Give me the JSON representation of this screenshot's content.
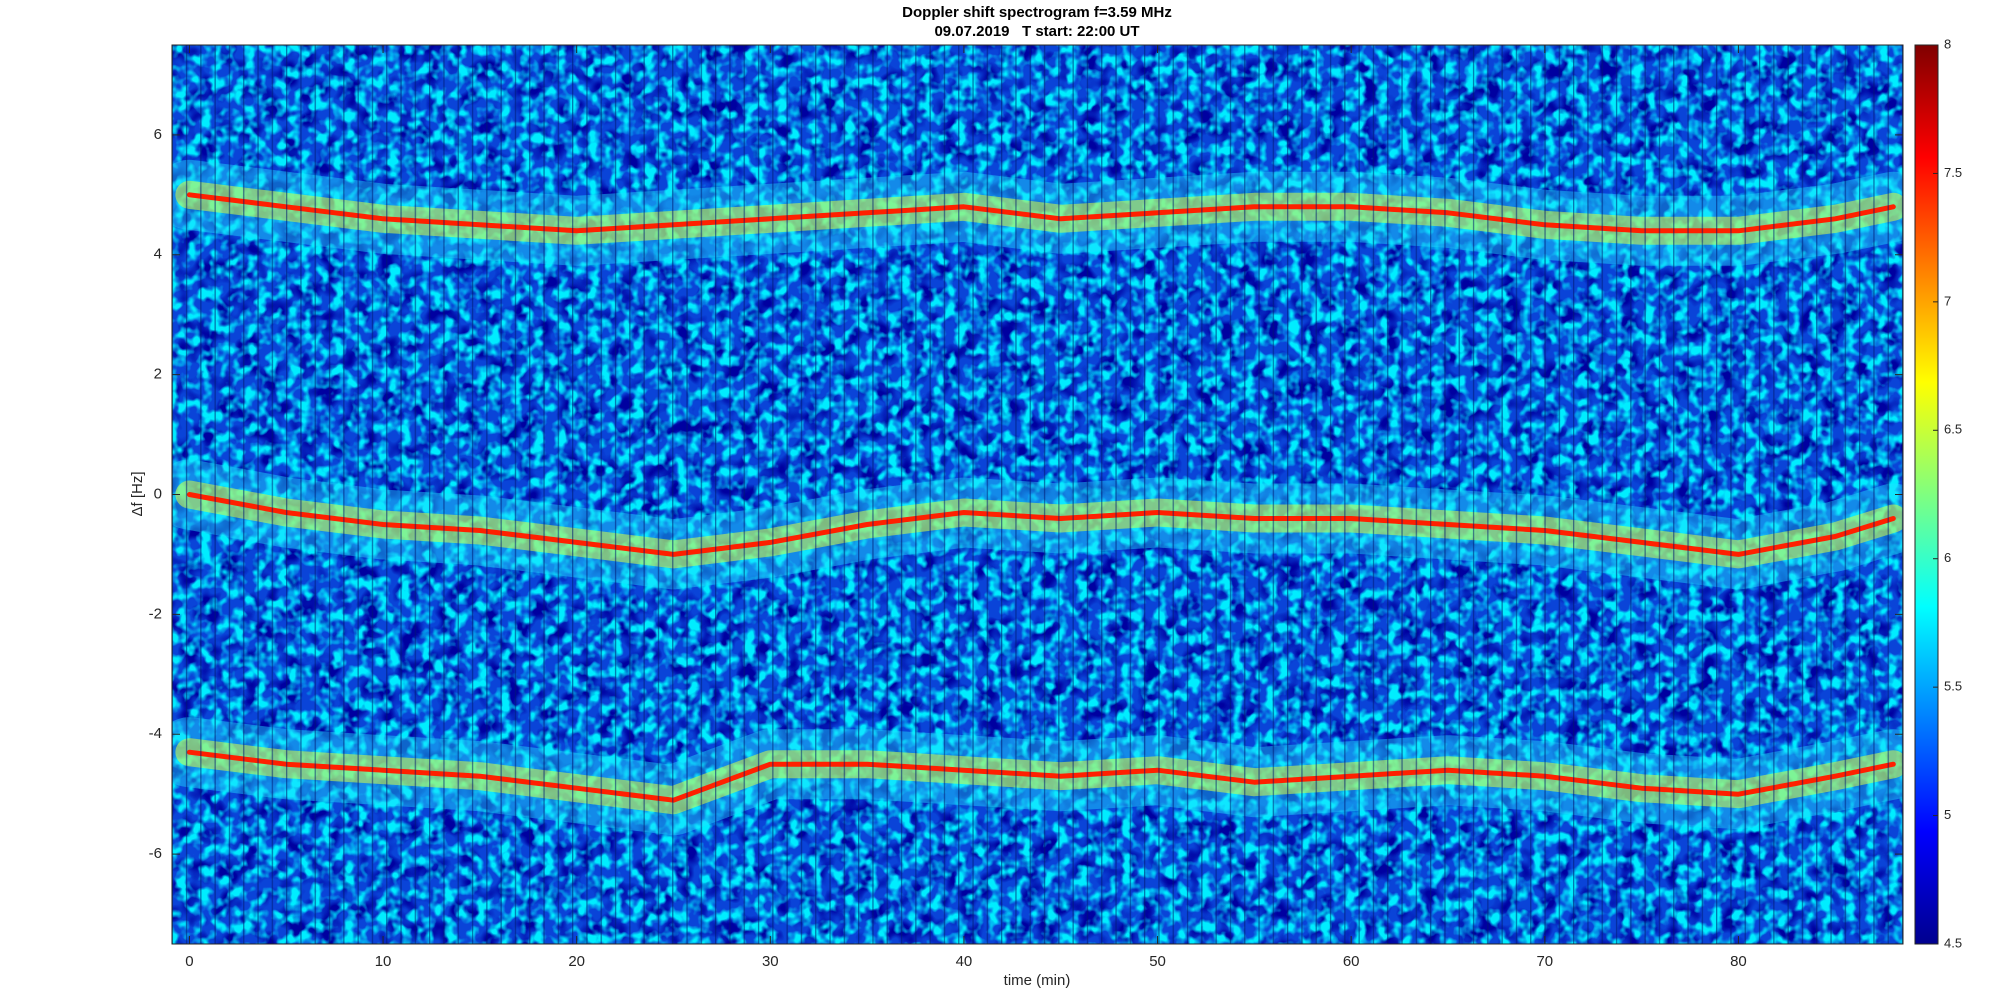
{
  "chart_data": {
    "type": "spectrogram",
    "title": "Doppler shift spectrogram f=3.59 MHz",
    "subtitle": "09.07.2019   T start: 22:00 UT",
    "xlabel": "time (min)",
    "ylabel": "Δf [Hz]",
    "xlim": [
      -0.9,
      88.5
    ],
    "ylim": [
      -7.5,
      7.5
    ],
    "xticks": [
      0,
      10,
      20,
      30,
      40,
      50,
      60,
      70,
      80
    ],
    "yticks": [
      -6,
      -4,
      -2,
      0,
      2,
      4,
      6
    ],
    "x": [
      0,
      5,
      10,
      15,
      20,
      25,
      30,
      35,
      40,
      45,
      50,
      55,
      60,
      65,
      70,
      75,
      80,
      85,
      88
    ],
    "series": [
      {
        "color": "#ff2000",
        "values": [
          5.0,
          4.8,
          4.6,
          4.5,
          4.4,
          4.5,
          4.6,
          4.7,
          4.8,
          4.6,
          4.7,
          4.8,
          4.8,
          4.7,
          4.5,
          4.4,
          4.4,
          4.6,
          4.8
        ]
      },
      {
        "color": "#ff2000",
        "values": [
          0.0,
          -0.3,
          -0.5,
          -0.6,
          -0.8,
          -1.0,
          -0.8,
          -0.5,
          -0.3,
          -0.4,
          -0.3,
          -0.4,
          -0.4,
          -0.5,
          -0.6,
          -0.8,
          -1.0,
          -0.7,
          -0.4
        ]
      },
      {
        "color": "#ff2000",
        "values": [
          -4.3,
          -4.5,
          -4.6,
          -4.7,
          -4.9,
          -5.1,
          -4.5,
          -4.5,
          -4.6,
          -4.7,
          -4.6,
          -4.8,
          -4.7,
          -4.6,
          -4.7,
          -4.9,
          -5.0,
          -4.7,
          -4.5
        ]
      }
    ],
    "colorbar": {
      "lim": [
        4.5,
        8
      ],
      "ticks": [
        4.5,
        5,
        5.5,
        6,
        6.5,
        7,
        7.5,
        8
      ]
    }
  }
}
